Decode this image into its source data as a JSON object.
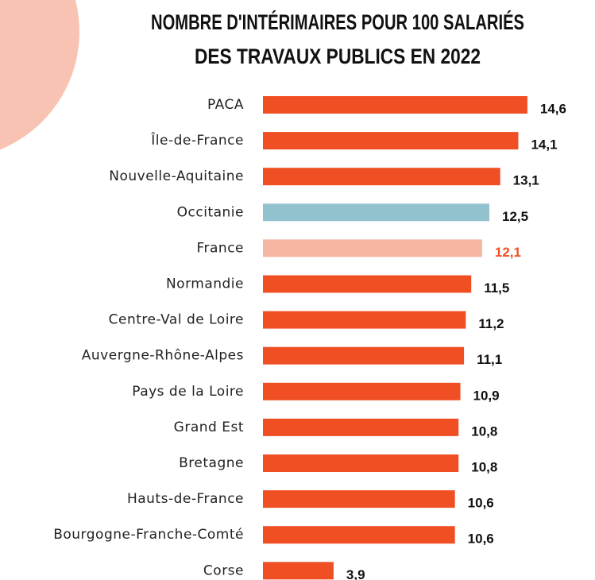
{
  "chart_data": {
    "type": "hbar",
    "title": [
      "NOMBRE D'INTÉRIMAIRES POUR 100 SALARIÉS",
      "DES TRAVAUX PUBLICS EN 2022"
    ],
    "categories": [
      "PACA",
      "Île-de-France",
      "Nouvelle-Aquitaine",
      "Occitanie",
      "France",
      "Normandie",
      "Centre-Val de Loire",
      "Auvergne-Rhône-Alpes",
      "Pays de la Loire",
      "Grand Est",
      "Bretagne",
      "Hauts-de-France",
      "Bourgogne-Franche-Comté",
      "Corse"
    ],
    "values": [
      14.6,
      14.1,
      13.1,
      12.5,
      12.1,
      11.5,
      11.2,
      11.1,
      10.9,
      10.8,
      10.8,
      10.6,
      10.6,
      3.9
    ],
    "value_labels": [
      "14,6",
      "14,1",
      "13,1",
      "12,5",
      "12,1",
      "11,5",
      "11,2",
      "11,1",
      "10,9",
      "10,8",
      "10,8",
      "10,6",
      "10,6",
      "3,9"
    ],
    "colors": [
      "#f04e23",
      "#f04e23",
      "#f04e23",
      "#93c2cf",
      "#f7b5a3",
      "#f04e23",
      "#f04e23",
      "#f04e23",
      "#f04e23",
      "#f04e23",
      "#f04e23",
      "#f04e23",
      "#f04e23",
      "#f04e23"
    ],
    "value_label_colors": [
      "#111111",
      "#111111",
      "#111111",
      "#111111",
      "#f04e23",
      "#111111",
      "#111111",
      "#111111",
      "#111111",
      "#111111",
      "#111111",
      "#111111",
      "#111111",
      "#111111"
    ],
    "xlim": [
      0,
      15
    ]
  }
}
